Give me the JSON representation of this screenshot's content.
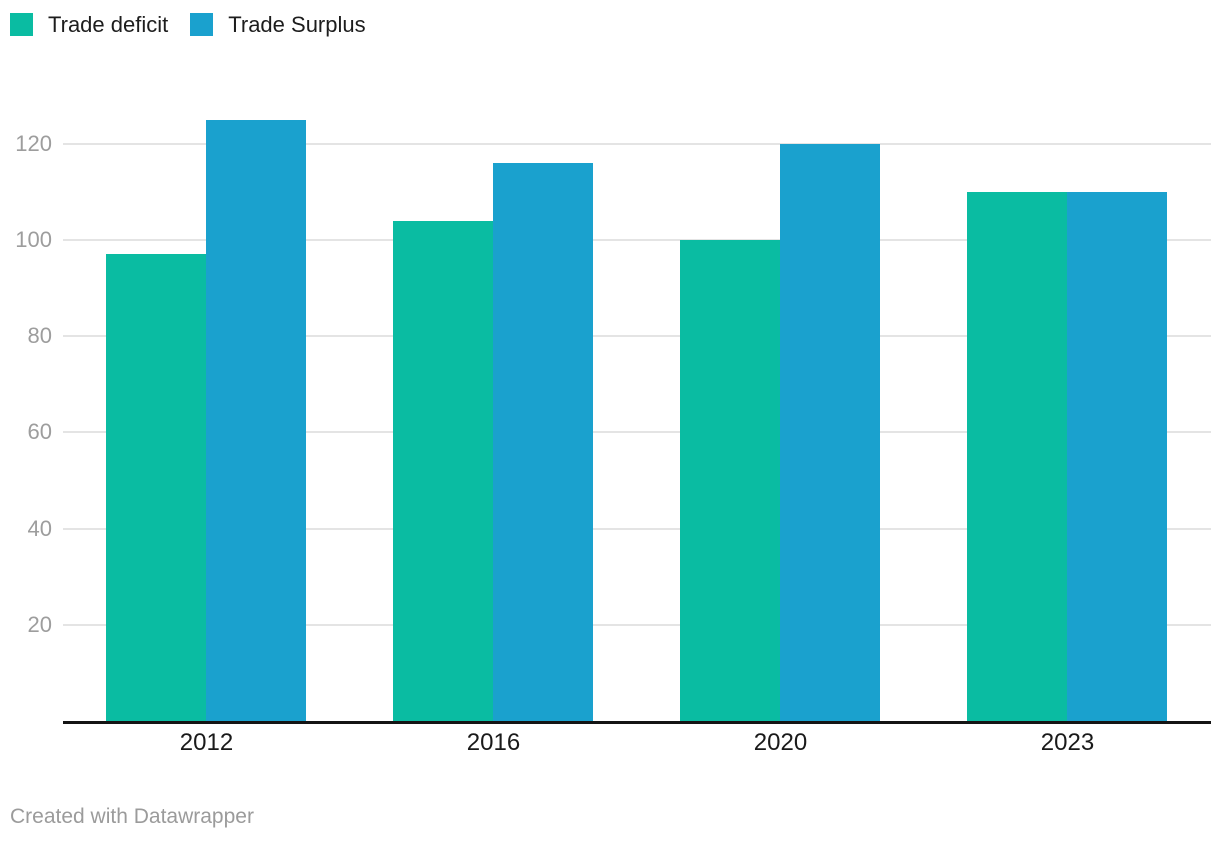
{
  "chart_data": {
    "type": "bar",
    "categories": [
      "2012",
      "2016",
      "2020",
      "2023"
    ],
    "series": [
      {
        "name": "Trade deficit",
        "color": "#0abca2",
        "values": [
          97,
          104,
          100,
          110
        ]
      },
      {
        "name": "Trade Surplus",
        "color": "#1aa1ce",
        "values": [
          125,
          116,
          120,
          110
        ]
      }
    ],
    "title": "",
    "xlabel": "",
    "ylabel": "",
    "ylim": [
      0,
      130
    ],
    "yticks": [
      20,
      40,
      60,
      80,
      100,
      120
    ],
    "grid": true,
    "legend_position": "top-left"
  },
  "colors": {
    "deficit_bar": "#0abca2",
    "surplus_bar": "#1aa1ce",
    "gridline": "#e4e4e4",
    "axis_line": "#141414",
    "y_tick_text": "#9d9d9d",
    "x_tick_text": "#1a1a1a",
    "legend_text": "#1d1d1d",
    "footer_text": "#9b9b9b",
    "background": "#ffffff"
  },
  "footer": {
    "text": "Created with Datawrapper"
  }
}
